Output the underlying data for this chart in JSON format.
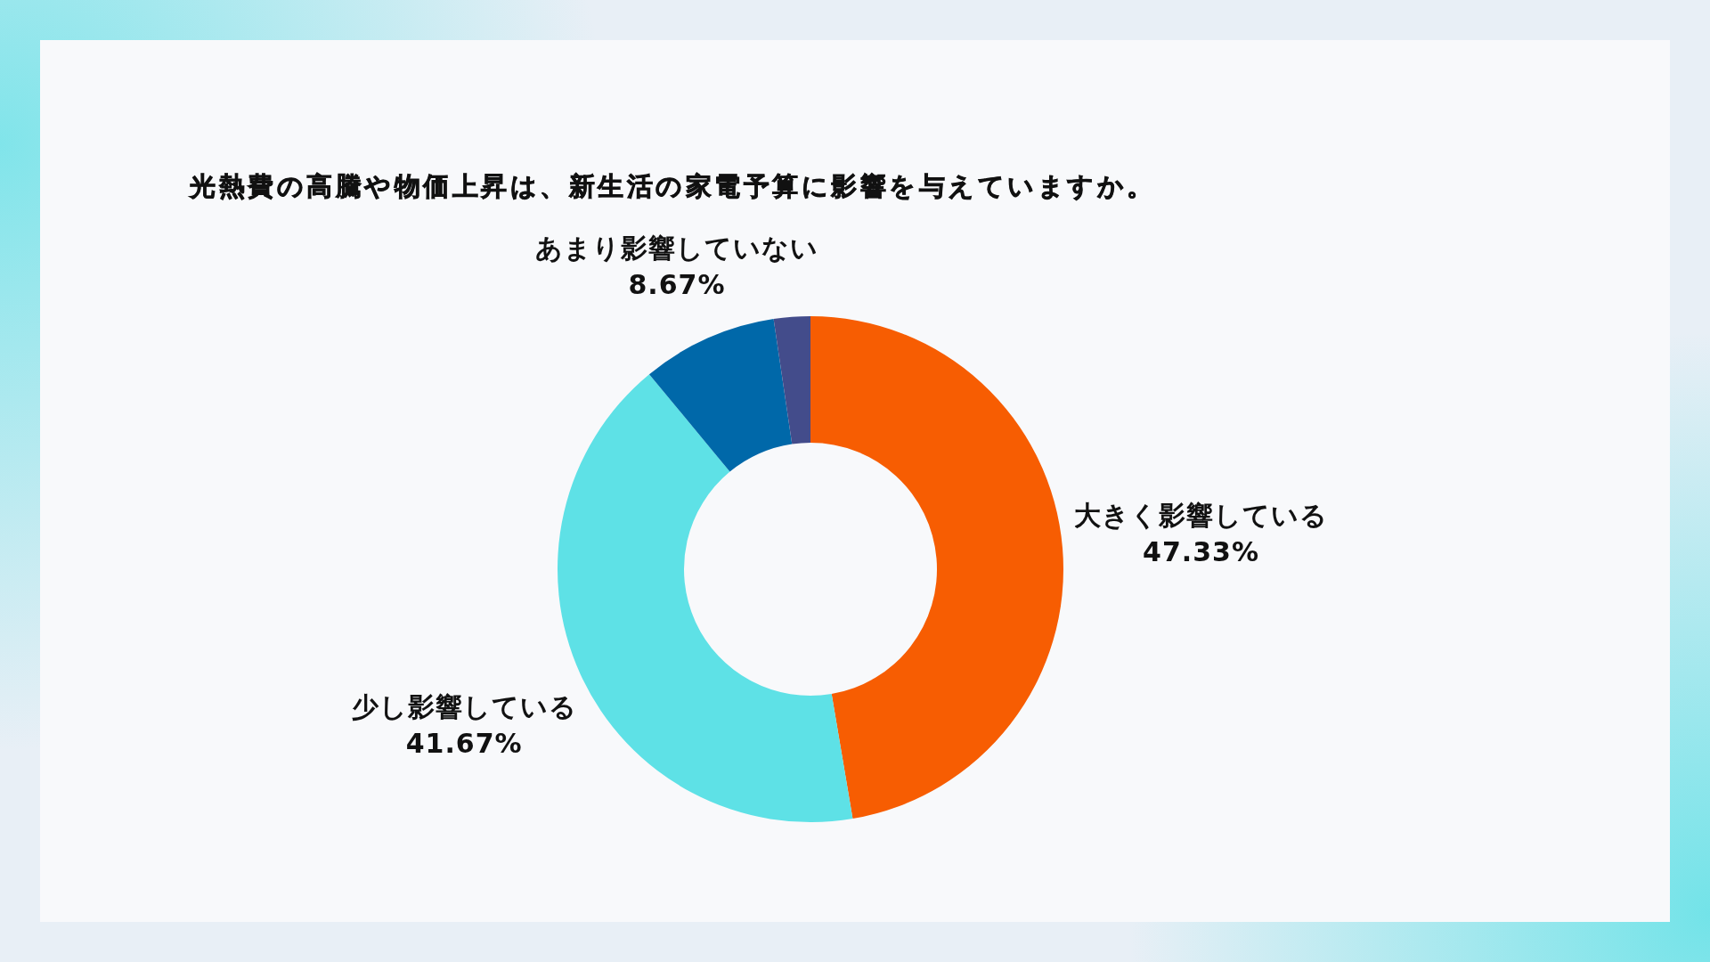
{
  "chart_data": {
    "type": "donut",
    "title": "光熱費の高騰や物価上昇は、新生活の家電予算に影響を与えていますか。",
    "categories": [
      "大きく影響している",
      "少し影響している",
      "あまり影響していない",
      null
    ],
    "values": [
      47.33,
      41.67,
      8.67,
      2.33
    ],
    "value_labels": [
      "47.33%",
      "41.67%",
      "8.67%",
      null
    ],
    "colors": [
      "#f75d02",
      "#5ee1e6",
      "#0068a9",
      "#434c8b"
    ]
  }
}
